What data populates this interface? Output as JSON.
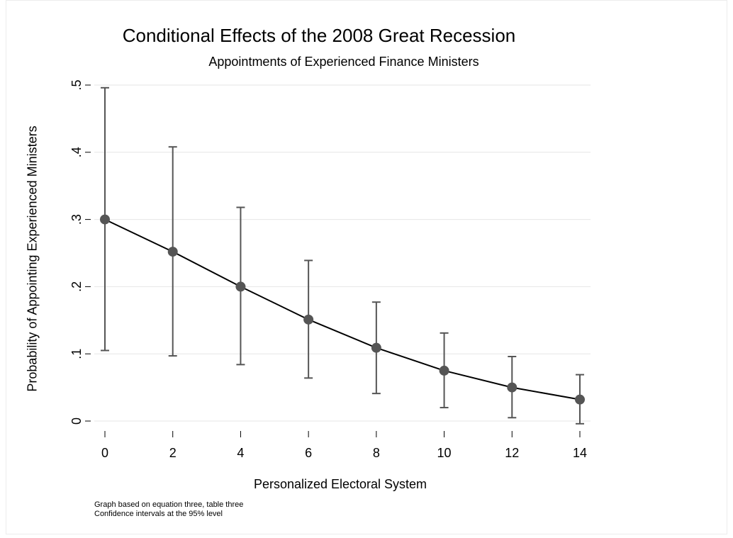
{
  "chart_data": {
    "type": "line",
    "title": "Conditional Effects of the 2008 Great Recession",
    "subtitle": "Appointments of Experienced Finance Ministers",
    "xlabel": "Personalized Electoral System",
    "ylabel": "Probability of Appointing Experienced Ministers",
    "x": [
      0,
      2,
      4,
      6,
      8,
      10,
      12,
      14
    ],
    "y": [
      0.3,
      0.252,
      0.2,
      0.151,
      0.109,
      0.075,
      0.05,
      0.032
    ],
    "ci_lower": [
      0.105,
      0.097,
      0.084,
      0.064,
      0.041,
      0.02,
      0.005,
      -0.004
    ],
    "ci_upper": [
      0.496,
      0.408,
      0.318,
      0.239,
      0.177,
      0.131,
      0.096,
      0.069
    ],
    "xticks": [
      0,
      2,
      4,
      6,
      8,
      10,
      12,
      14
    ],
    "xtick_labels": [
      "0",
      "2",
      "4",
      "6",
      "8",
      "10",
      "12",
      "14"
    ],
    "yticks": [
      0,
      0.1,
      0.2,
      0.3,
      0.4,
      0.5
    ],
    "ytick_labels": [
      "0",
      ".1",
      ".2",
      ".3",
      ".4",
      ".5"
    ],
    "xlim": [
      0,
      14
    ],
    "ylim": [
      0,
      0.5
    ],
    "grid": true,
    "colors": {
      "line": "#000000",
      "marker": "#555555",
      "errorbar": "#555555",
      "grid": "#e6e6e6"
    },
    "notes": [
      "Graph based on equation three, table three",
      "Confidence intervals at the 95% level"
    ]
  }
}
